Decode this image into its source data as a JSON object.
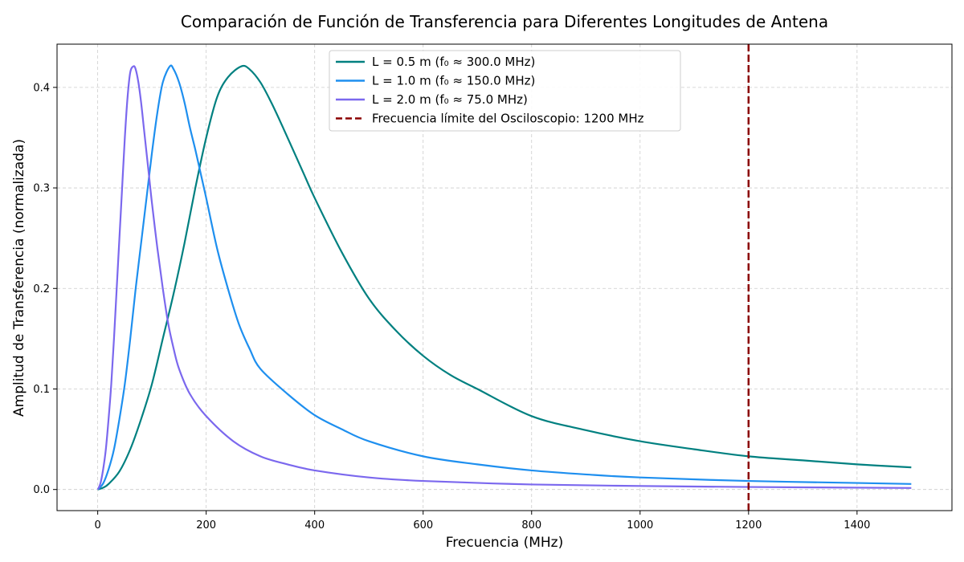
{
  "chart_data": {
    "type": "line",
    "title": "Comparación de Función de Transferencia para Diferentes Longitudes de Antena",
    "xlabel": "Frecuencia (MHz)",
    "ylabel": "Amplitud de Transferencia (normalizada)",
    "xlim": [
      -75,
      1575
    ],
    "ylim": [
      -0.021,
      0.443
    ],
    "xticks": [
      0,
      200,
      400,
      600,
      800,
      1000,
      1200,
      1400
    ],
    "yticks": [
      0.0,
      0.1,
      0.2,
      0.3,
      0.4
    ],
    "xtick_labels": [
      "0",
      "200",
      "400",
      "600",
      "800",
      "1000",
      "1200",
      "1400"
    ],
    "ytick_labels": [
      "0.0",
      "0.1",
      "0.2",
      "0.3",
      "0.4"
    ],
    "grid": true,
    "legend_position": "top-center",
    "series": [
      {
        "name": "L = 0.5 m (f₀ ≈ 300.0 MHz)",
        "color": "#008080",
        "x": [
          0,
          10,
          20,
          40,
          60,
          80,
          100,
          120,
          140,
          160,
          180,
          200,
          220,
          240,
          265,
          280,
          300,
          320,
          340,
          360,
          380,
          400,
          450,
          500,
          550,
          600,
          650,
          700,
          800,
          900,
          1000,
          1100,
          1200,
          1300,
          1400,
          1500
        ],
        "y": [
          0.0,
          0.0018,
          0.0055,
          0.018,
          0.04,
          0.07,
          0.105,
          0.15,
          0.195,
          0.245,
          0.3,
          0.35,
          0.39,
          0.41,
          0.421,
          0.418,
          0.405,
          0.385,
          0.362,
          0.338,
          0.314,
          0.29,
          0.236,
          0.19,
          0.158,
          0.133,
          0.114,
          0.1,
          0.073,
          0.059,
          0.048,
          0.04,
          0.033,
          0.029,
          0.025,
          0.022
        ]
      },
      {
        "name": "L = 1.0 m (f₀ ≈ 150.0 MHz)",
        "color": "#1e8fef",
        "x": [
          0,
          10,
          20,
          30,
          40,
          50,
          60,
          70,
          80,
          90,
          100,
          110,
          120,
          133,
          140,
          150,
          160,
          170,
          180,
          190,
          200,
          220,
          240,
          260,
          280,
          300,
          350,
          400,
          450,
          500,
          600,
          700,
          800,
          900,
          1000,
          1200,
          1400,
          1500
        ],
        "y": [
          0.0,
          0.006,
          0.02,
          0.04,
          0.07,
          0.105,
          0.15,
          0.2,
          0.245,
          0.29,
          0.335,
          0.375,
          0.405,
          0.421,
          0.418,
          0.405,
          0.385,
          0.36,
          0.338,
          0.314,
          0.29,
          0.24,
          0.2,
          0.165,
          0.14,
          0.12,
          0.095,
          0.074,
          0.06,
          0.048,
          0.033,
          0.025,
          0.019,
          0.015,
          0.012,
          0.0085,
          0.0065,
          0.0055
        ]
      },
      {
        "name": "L = 2.0 m (f₀ ≈ 75.0 MHz)",
        "color": "#7b68ee",
        "x": [
          0,
          5,
          10,
          15,
          20,
          25,
          30,
          35,
          40,
          45,
          50,
          55,
          60,
          66,
          70,
          75,
          80,
          85,
          90,
          95,
          100,
          110,
          120,
          130,
          140,
          150,
          170,
          200,
          250,
          300,
          350,
          400,
          500,
          600,
          800,
          1000,
          1200,
          1500
        ],
        "y": [
          0.0,
          0.006,
          0.02,
          0.04,
          0.07,
          0.105,
          0.15,
          0.2,
          0.25,
          0.3,
          0.35,
          0.39,
          0.415,
          0.421,
          0.418,
          0.405,
          0.385,
          0.36,
          0.335,
          0.31,
          0.285,
          0.24,
          0.2,
          0.165,
          0.14,
          0.12,
          0.095,
          0.073,
          0.048,
          0.033,
          0.025,
          0.019,
          0.012,
          0.0085,
          0.005,
          0.0035,
          0.0025,
          0.0015
        ]
      }
    ],
    "vline": {
      "name": "Frecuencia límite del Osciloscopio: 1200 MHz",
      "x": 1200,
      "color": "#8b0000",
      "style": "dashed"
    }
  }
}
